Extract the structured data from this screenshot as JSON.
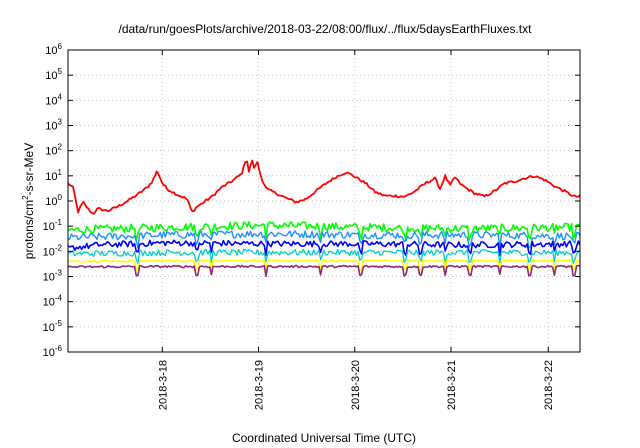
{
  "chart_data": {
    "type": "line",
    "title": "/data/run/goesPlots/archive/2018-03-22/08:00/flux/../flux/5daysEarthFluxes.txt",
    "xlabel": "Coordinated Universal Time (UTC)",
    "ylabel": "protons/cm²-s-sr-MeV",
    "yscale": "log",
    "ylim": [
      1e-06,
      1000000.0
    ],
    "y_ticks": [
      {
        "value": 1e-06,
        "base": "10",
        "exp": "-6"
      },
      {
        "value": 1e-05,
        "base": "10",
        "exp": "-5"
      },
      {
        "value": 0.0001,
        "base": "10",
        "exp": "-4"
      },
      {
        "value": 0.001,
        "base": "10",
        "exp": "-3"
      },
      {
        "value": 0.01,
        "base": "10",
        "exp": "-2"
      },
      {
        "value": 0.1,
        "base": "10",
        "exp": "-1"
      },
      {
        "value": 1.0,
        "base": "10",
        "exp": "0"
      },
      {
        "value": 10.0,
        "base": "10",
        "exp": "1"
      },
      {
        "value": 100.0,
        "base": "10",
        "exp": "2"
      },
      {
        "value": 1000.0,
        "base": "10",
        "exp": "3"
      },
      {
        "value": 10000.0,
        "base": "10",
        "exp": "4"
      },
      {
        "value": 100000.0,
        "base": "10",
        "exp": "5"
      },
      {
        "value": 1000000.0,
        "base": "10",
        "exp": "6"
      }
    ],
    "x_range_days": [
      0.0,
      5.16
    ],
    "x_ticks": [
      {
        "day": 0.95,
        "label": "2018-3-18"
      },
      {
        "day": 1.92,
        "label": "2018-3-19"
      },
      {
        "day": 2.89,
        "label": "2018-3-20"
      },
      {
        "day": 3.86,
        "label": "2018-3-21"
      },
      {
        "day": 4.84,
        "label": "2018-3-22"
      }
    ],
    "grid": true,
    "legend": "none",
    "series": [
      {
        "color": "#ff0000",
        "width": 1.8,
        "noise": 0.05,
        "points": [
          [
            0.0,
            5.0
          ],
          [
            0.05,
            3.5
          ],
          [
            0.08,
            1.0
          ],
          [
            0.1,
            0.35
          ],
          [
            0.15,
            0.9
          ],
          [
            0.2,
            0.5
          ],
          [
            0.25,
            0.3
          ],
          [
            0.3,
            0.5
          ],
          [
            0.4,
            0.4
          ],
          [
            0.5,
            0.6
          ],
          [
            0.6,
            1.0
          ],
          [
            0.7,
            1.8
          ],
          [
            0.8,
            3.5
          ],
          [
            0.85,
            6
          ],
          [
            0.9,
            16
          ],
          [
            0.95,
            5
          ],
          [
            1.0,
            3.0
          ],
          [
            1.1,
            1.8
          ],
          [
            1.2,
            1.2
          ],
          [
            1.25,
            0.35
          ],
          [
            1.3,
            0.6
          ],
          [
            1.35,
            0.8
          ],
          [
            1.45,
            1.5
          ],
          [
            1.55,
            3.5
          ],
          [
            1.65,
            6
          ],
          [
            1.75,
            12
          ],
          [
            1.8,
            55
          ],
          [
            1.83,
            10
          ],
          [
            1.85,
            60
          ],
          [
            1.88,
            15
          ],
          [
            1.9,
            45
          ],
          [
            1.95,
            8
          ],
          [
            2.0,
            3.0
          ],
          [
            2.1,
            2.0
          ],
          [
            2.2,
            1.3
          ],
          [
            2.3,
            0.9
          ],
          [
            2.4,
            1.2
          ],
          [
            2.5,
            2.5
          ],
          [
            2.6,
            5
          ],
          [
            2.7,
            9
          ],
          [
            2.8,
            14
          ],
          [
            2.9,
            9
          ],
          [
            3.0,
            5
          ],
          [
            3.1,
            2.2
          ],
          [
            3.2,
            1.6
          ],
          [
            3.3,
            1.6
          ],
          [
            3.4,
            1.5
          ],
          [
            3.5,
            2.5
          ],
          [
            3.6,
            5
          ],
          [
            3.7,
            8
          ],
          [
            3.75,
            3
          ],
          [
            3.8,
            10
          ],
          [
            3.85,
            4
          ],
          [
            3.9,
            9
          ],
          [
            3.95,
            5
          ],
          [
            4.0,
            3.5
          ],
          [
            4.1,
            2.0
          ],
          [
            4.2,
            1.5
          ],
          [
            4.3,
            2.5
          ],
          [
            4.4,
            5
          ],
          [
            4.5,
            6
          ],
          [
            4.6,
            8
          ],
          [
            4.7,
            10
          ],
          [
            4.8,
            7
          ],
          [
            4.9,
            4
          ],
          [
            5.0,
            2.5
          ],
          [
            5.1,
            1.5
          ],
          [
            5.16,
            1.5
          ]
        ]
      },
      {
        "color": "#00ff00",
        "width": 1.6,
        "noise": 0.16,
        "points": [
          [
            0.0,
            0.07
          ],
          [
            1.0,
            0.09
          ],
          [
            2.0,
            0.11
          ],
          [
            3.0,
            0.09
          ],
          [
            4.0,
            0.08
          ],
          [
            5.16,
            0.09
          ]
        ]
      },
      {
        "color": "#1e90ff",
        "width": 1.4,
        "noise": 0.15,
        "points": [
          [
            0.0,
            0.035
          ],
          [
            1.0,
            0.045
          ],
          [
            2.0,
            0.05
          ],
          [
            3.0,
            0.045
          ],
          [
            4.0,
            0.045
          ],
          [
            5.16,
            0.04
          ]
        ]
      },
      {
        "color": "#0000ff",
        "width": 1.6,
        "noise": 0.12,
        "points": [
          [
            0.0,
            0.013
          ],
          [
            0.3,
            0.018
          ],
          [
            1.0,
            0.022
          ],
          [
            2.0,
            0.02
          ],
          [
            3.0,
            0.02
          ],
          [
            4.0,
            0.018
          ],
          [
            5.16,
            0.02
          ]
        ]
      },
      {
        "color": "#00cfcf",
        "width": 1.3,
        "noise": 0.12,
        "points": [
          [
            0.0,
            0.008
          ],
          [
            1.0,
            0.009
          ],
          [
            2.0,
            0.009
          ],
          [
            3.0,
            0.009
          ],
          [
            4.0,
            0.009
          ],
          [
            5.16,
            0.009
          ]
        ]
      },
      {
        "color": "#ffff00",
        "width": 1.6,
        "noise": 0.03,
        "points": [
          [
            0.0,
            0.004
          ],
          [
            1.0,
            0.0042
          ],
          [
            2.0,
            0.0042
          ],
          [
            3.0,
            0.0042
          ],
          [
            4.0,
            0.0042
          ],
          [
            5.16,
            0.0042
          ]
        ]
      },
      {
        "color": "#8b2a7a",
        "width": 1.6,
        "noise": 0.04,
        "points": [
          [
            0.0,
            0.0024
          ],
          [
            1.0,
            0.0025
          ],
          [
            2.0,
            0.0025
          ],
          [
            3.0,
            0.0025
          ],
          [
            4.0,
            0.0025
          ],
          [
            5.16,
            0.0025
          ]
        ]
      }
    ],
    "dips_days": [
      0.7,
      1.3,
      1.45,
      2.0,
      2.55,
      2.95,
      3.4,
      3.55,
      3.8,
      4.05,
      4.35,
      4.65,
      4.9,
      5.1
    ]
  }
}
